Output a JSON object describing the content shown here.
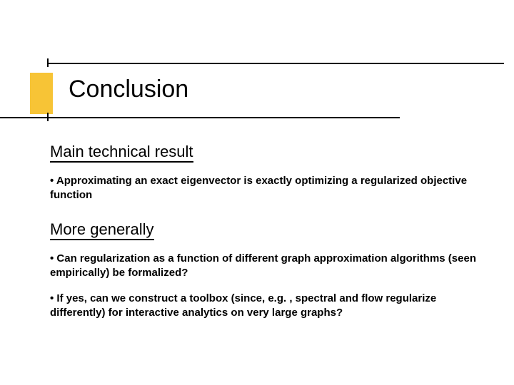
{
  "slide": {
    "title": "Conclusion",
    "title_fontsize": 34,
    "title_color": "#000000",
    "decor_block_color": "#f7c436",
    "rule_color": "#000000",
    "background_color": "#ffffff",
    "sections": [
      {
        "heading": "Main technical result",
        "heading_fontsize": 22,
        "heading_underline": true,
        "bullets": [
          "• Approximating an exact eigenvector is exactly optimizing a regularized objective function"
        ]
      },
      {
        "heading": "More generally",
        "heading_fontsize": 22,
        "heading_underline": true,
        "bullets": [
          "• Can regularization as a function of different graph approximation algorithms (seen empirically) be formalized?",
          "• If yes, can we construct a toolbox (since, e.g. , spectral and flow regularize differently) for interactive analytics on very large graphs?"
        ]
      }
    ],
    "bullet_fontsize": 15,
    "bullet_fontweight": "bold",
    "font_family": "Comic Sans MS"
  }
}
